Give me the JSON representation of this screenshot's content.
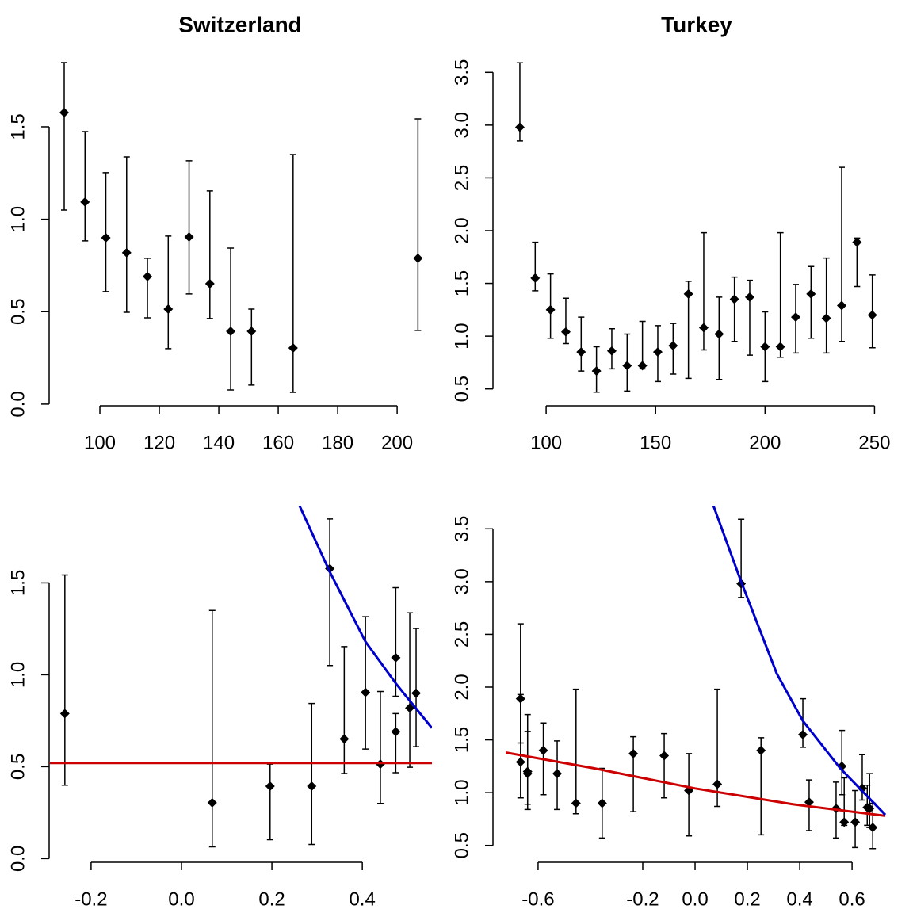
{
  "chart_data": [
    {
      "type": "scatter",
      "title": "Switzerland",
      "xlim": [
        83.2,
        211.7
      ],
      "ylim": [
        -0.009,
        1.92
      ],
      "xticks": [
        100,
        120,
        140,
        160,
        180,
        200
      ],
      "yticks": [
        {
          "value": 0,
          "label": "0.0"
        },
        0.5,
        {
          "value": 1,
          "label": "1.0"
        },
        1.5
      ],
      "color": "#000000",
      "x": [
        88,
        95,
        102,
        109,
        116,
        123,
        130,
        137,
        144,
        151,
        165,
        207
      ],
      "values": [
        1.577,
        1.093,
        0.9,
        0.819,
        0.69,
        0.514,
        0.904,
        0.651,
        0.394,
        0.394,
        0.304,
        0.789
      ],
      "lower": [
        1.05,
        0.883,
        0.609,
        0.497,
        0.467,
        0.3,
        0.596,
        0.463,
        0.077,
        0.103,
        0.064,
        0.399
      ],
      "upper": [
        1.847,
        1.474,
        1.252,
        1.337,
        0.789,
        0.909,
        1.316,
        1.153,
        0.844,
        0.514,
        1.35,
        1.543
      ],
      "lines": []
    },
    {
      "type": "scatter",
      "title": "Turkey",
      "xlim": [
        81.5,
        256
      ],
      "ylim": [
        0.34,
        3.72
      ],
      "xticks": [
        100,
        150,
        200,
        250
      ],
      "yticks": [
        0.5,
        {
          "value": 1,
          "label": "1.0"
        },
        1.5,
        {
          "value": 2,
          "label": "2.0"
        },
        2.5,
        {
          "value": 3,
          "label": "3.0"
        },
        3.5
      ],
      "color": "#000000",
      "x": [
        88,
        95,
        102,
        109,
        116,
        123,
        130,
        137,
        144,
        151,
        158,
        165,
        172,
        179,
        186,
        193,
        200,
        207,
        214,
        221,
        228,
        235,
        242,
        249
      ],
      "values": [
        2.98,
        1.55,
        1.25,
        1.04,
        0.85,
        0.67,
        0.86,
        0.72,
        0.72,
        0.85,
        0.91,
        1.4,
        1.08,
        1.02,
        1.35,
        1.37,
        0.9,
        0.9,
        1.18,
        1.4,
        1.17,
        1.29,
        1.89,
        1.2
      ],
      "lower": [
        2.85,
        1.43,
        0.98,
        0.93,
        0.67,
        0.47,
        0.69,
        0.48,
        0.69,
        0.57,
        0.64,
        0.6,
        0.87,
        0.59,
        0.95,
        0.82,
        0.57,
        0.8,
        0.84,
        0.98,
        0.84,
        0.95,
        1.47,
        0.89
      ],
      "upper": [
        3.59,
        1.89,
        1.59,
        1.36,
        1.18,
        0.9,
        1.07,
        1.02,
        1.14,
        1.1,
        1.12,
        1.52,
        1.98,
        1.37,
        1.56,
        1.53,
        1.23,
        1.98,
        1.49,
        1.66,
        1.74,
        2.6,
        1.93,
        1.58
      ],
      "lines": []
    },
    {
      "type": "scatter",
      "xlim": [
        -0.291,
        0.554
      ],
      "ylim": [
        -0.02,
        1.92
      ],
      "xticks": [
        -0.2,
        {
          "value": 0,
          "label": "0.0"
        },
        0.2,
        0.4
      ],
      "yticks": [
        {
          "value": 0,
          "label": "0.0"
        },
        0.5,
        {
          "value": 1,
          "label": "1.0"
        },
        1.5
      ],
      "color": "#000000",
      "x": [
        -0.258,
        0.068,
        0.196,
        0.288,
        0.328,
        0.36,
        0.407,
        0.44,
        0.474,
        0.474,
        0.505,
        0.519
      ],
      "values": [
        0.789,
        0.304,
        0.394,
        0.394,
        1.577,
        0.651,
        0.904,
        0.514,
        0.69,
        1.093,
        0.819,
        0.9
      ],
      "lower": [
        0.399,
        0.064,
        0.103,
        0.077,
        1.05,
        0.463,
        0.596,
        0.3,
        0.467,
        0.883,
        0.497,
        0.609
      ],
      "upper": [
        1.543,
        1.35,
        0.514,
        0.844,
        1.847,
        1.153,
        1.316,
        0.909,
        0.789,
        1.474,
        1.337,
        1.252
      ],
      "lines": [
        {
          "color": "#cc0000",
          "x": [
            -0.291,
            0.554
          ],
          "values": [
            0.52,
            0.52
          ]
        },
        {
          "color": "#0000cc",
          "x": [
            0.261,
            0.328,
            0.407,
            0.475,
            0.554
          ],
          "values": [
            1.92,
            1.56,
            1.18,
            0.95,
            0.71
          ]
        }
      ]
    },
    {
      "type": "scatter",
      "xlim": [
        -0.724,
        0.736
      ],
      "ylim": [
        0.34,
        3.72
      ],
      "xticks": [
        -0.6,
        -0.2,
        {
          "value": 0,
          "label": "0.0"
        },
        0.2,
        0.4,
        0.6
      ],
      "yticks": [
        0.5,
        {
          "value": 1,
          "label": "1.0"
        },
        1.5,
        {
          "value": 2,
          "label": "2.0"
        },
        2.5,
        {
          "value": 3,
          "label": "3.0"
        },
        3.5
      ],
      "color": "#000000",
      "x": [
        -0.667,
        -0.667,
        -0.64,
        -0.64,
        -0.58,
        -0.527,
        -0.455,
        -0.355,
        -0.236,
        -0.118,
        -0.024,
        0.085,
        0.176,
        0.252,
        0.412,
        0.436,
        0.539,
        0.561,
        0.57,
        0.612,
        0.639,
        0.658,
        0.667,
        0.679
      ],
      "values": [
        1.89,
        1.29,
        1.2,
        1.18,
        1.4,
        1.18,
        0.9,
        0.9,
        1.37,
        1.35,
        1.02,
        1.08,
        2.98,
        1.4,
        1.55,
        0.91,
        0.85,
        1.25,
        0.72,
        0.72,
        1.04,
        0.86,
        0.85,
        0.67
      ],
      "lower": [
        1.47,
        0.95,
        0.89,
        0.84,
        0.98,
        0.84,
        0.8,
        0.57,
        0.82,
        0.95,
        0.59,
        0.87,
        2.85,
        0.6,
        1.43,
        0.64,
        0.57,
        0.98,
        0.69,
        0.48,
        0.93,
        0.69,
        0.67,
        0.47
      ],
      "upper": [
        1.93,
        2.6,
        1.58,
        1.74,
        1.66,
        1.49,
        1.98,
        1.23,
        1.53,
        1.56,
        1.37,
        1.98,
        3.59,
        1.52,
        1.89,
        1.12,
        1.1,
        1.59,
        1.14,
        1.02,
        1.36,
        1.07,
        1.18,
        0.9
      ],
      "lines": [
        {
          "color": "#cc0000",
          "x": [
            -0.724,
            -0.385,
            0,
            0.373,
            0.727
          ],
          "values": [
            1.38,
            1.23,
            1.04,
            0.89,
            0.78
          ]
        },
        {
          "color": "#0000cc",
          "x": [
            0.07,
            0.176,
            0.312,
            0.412,
            0.555,
            0.727
          ],
          "values": [
            3.72,
            3.0,
            2.13,
            1.68,
            1.23,
            0.79
          ]
        }
      ]
    }
  ]
}
